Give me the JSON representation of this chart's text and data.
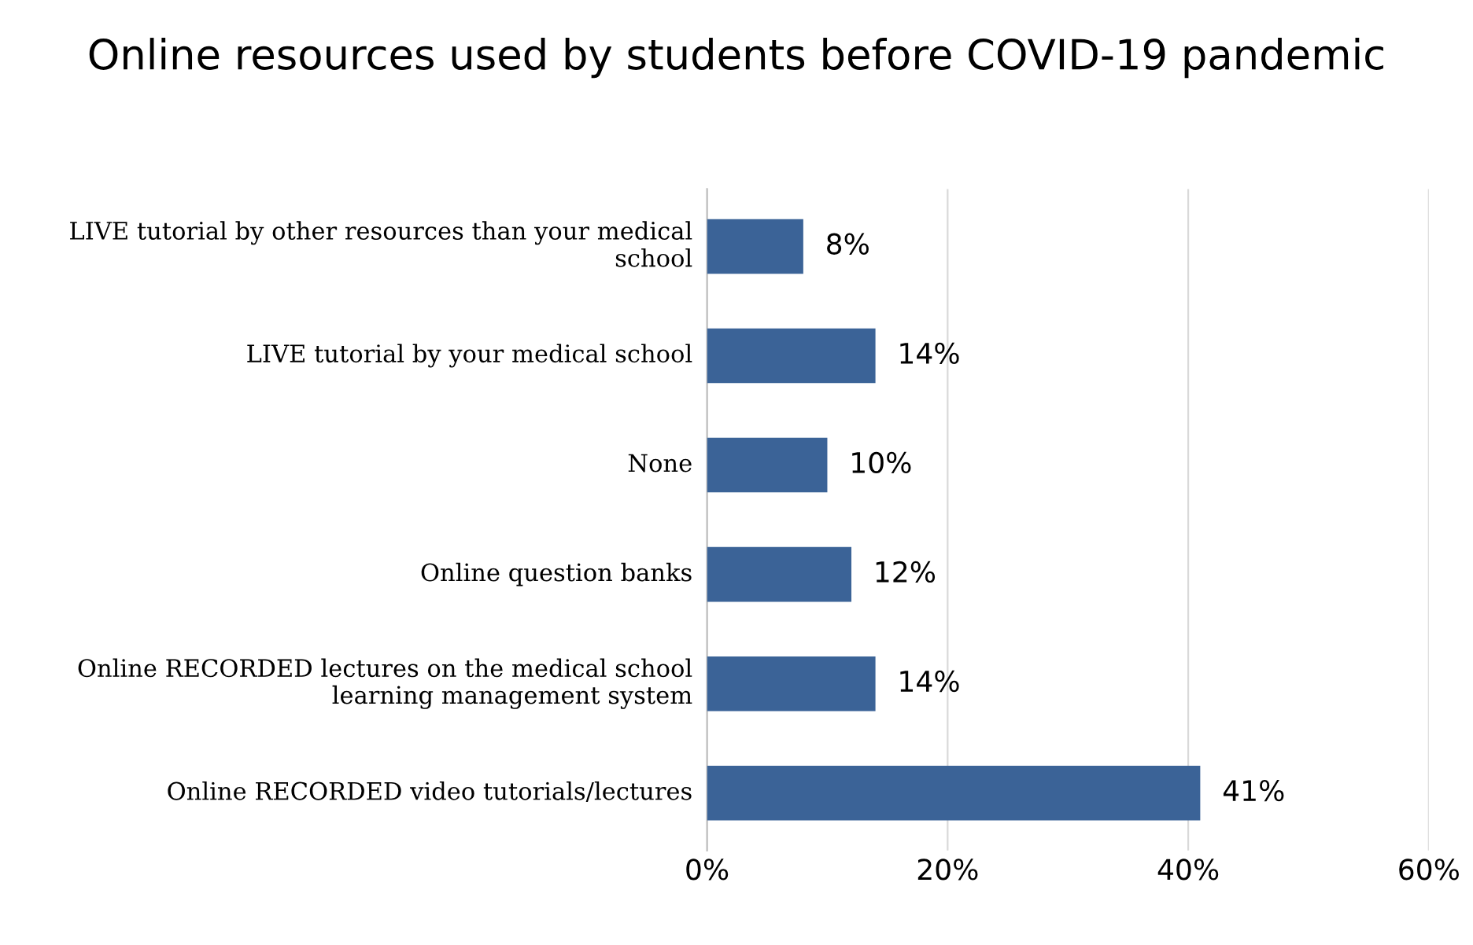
{
  "chart_data": {
    "type": "bar",
    "orientation": "horizontal",
    "title": "Online resources used by students before COVID-19 pandemic",
    "categories": [
      "LIVE tutorial by other resources than your medical school",
      "LIVE tutorial by your medical school",
      "None",
      "Online question banks",
      "Online RECORDED lectures on the medical school learning management system",
      "Online RECORDED video tutorials/lectures"
    ],
    "values": [
      8,
      14,
      10,
      12,
      14,
      41
    ],
    "value_labels": [
      "8%",
      "14%",
      "10%",
      "12%",
      "14%",
      "41%"
    ],
    "color": "#3b6397",
    "xlim": [
      0,
      60
    ],
    "xticks": [
      {
        "value": 0,
        "label": "0%"
      },
      {
        "value": 20,
        "label": "20%"
      },
      {
        "value": 40,
        "label": "40%"
      },
      {
        "value": 60,
        "label": "60%"
      }
    ],
    "grid": "x",
    "legend": false
  }
}
